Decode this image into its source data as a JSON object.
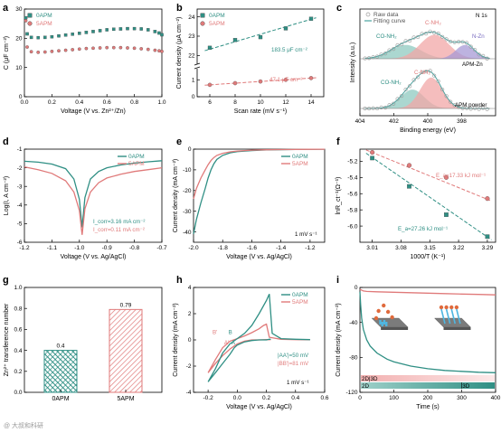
{
  "colors": {
    "apm0": "#2f8f84",
    "apm5": "#e07a7a",
    "grey": "#9a9a9a",
    "dark": "#3a3a3a"
  },
  "legend": {
    "apm0": "0APM",
    "apm5": "5APM"
  },
  "panels": {
    "a": {
      "letter": "a",
      "xlabel": "Voltage (V vs. Zn²⁺/Zn)",
      "ylabel": "C (μF cm⁻²)"
    },
    "b": {
      "letter": "b",
      "xlabel": "Scan rate (mV s⁻¹)",
      "ylabel": "Current density (μA cm⁻²)",
      "ann_0": "183.5 μF cm⁻²",
      "ann_5": "47.1 μF cm⁻²"
    },
    "c": {
      "letter": "c",
      "xlabel": "Binding energy (eV)",
      "ylabel": "Intensity (a.u.)",
      "legend_raw": "Raw data",
      "legend_fit": "Fitting curve",
      "tag": "N 1s",
      "top_labels": [
        "CO-NH₂",
        "C-NH₂",
        "N-Zn"
      ],
      "top_sample": "APM-Zn",
      "bottom_labels": [
        "CO-NH₂",
        "C-NH₂"
      ],
      "bottom_sample": "APM powder"
    },
    "d": {
      "letter": "d",
      "xlabel": "Voltage (V vs. Ag/AgCl)",
      "ylabel": "Log(I, A cm⁻²)",
      "icorr_0": "I_corr=3.16 mA cm⁻²",
      "icorr_5": "I_corr=0.11 mA cm⁻²"
    },
    "e": {
      "letter": "e",
      "xlabel": "Voltage (V vs. Ag/AgCl)",
      "ylabel": "Current density (mA cm⁻²)",
      "rate": "1 mV s⁻¹"
    },
    "f": {
      "letter": "f",
      "xlabel": "1000/T (K⁻¹)",
      "ylabel": "lnR_ct⁻¹(Ω⁻¹)",
      "ea_5": "E_a=17.33 kJ mol⁻¹",
      "ea_0": "E_a=27.26 kJ mol⁻¹"
    },
    "g": {
      "letter": "g",
      "xlabel": "",
      "ylabel": "Zn²⁺ transference number"
    },
    "h": {
      "letter": "h",
      "xlabel": "Voltage (V vs. Ag/AgCl)",
      "ylabel": "Current density (mA cm⁻²)",
      "rate": "1 mV s⁻¹",
      "ann_aa": "|AA'|=50 mV",
      "ann_bb": "|BB'|=81 mV",
      "pt_labels": [
        "B'",
        "B",
        "A'",
        "A"
      ]
    },
    "i": {
      "letter": "i",
      "xlabel": "Time (s)",
      "ylabel": "Current density (mA cm⁻²)",
      "tag_2d3d": "2D|3D",
      "tag_2d": "2D",
      "tag_3d": "3D"
    }
  },
  "watermark": "@ 大叔和科研",
  "chart_data": [
    {
      "panel": "a",
      "type": "scatter",
      "xlim": [
        0,
        1.0
      ],
      "ylim": [
        0,
        30
      ],
      "xticks": [
        0.0,
        0.2,
        0.4,
        0.6,
        0.8,
        1.0
      ],
      "yticks": [
        0,
        10,
        20,
        30
      ],
      "series": [
        {
          "name": "0APM",
          "x": [
            0.01,
            0.02,
            0.05,
            0.1,
            0.15,
            0.2,
            0.25,
            0.3,
            0.35,
            0.4,
            0.45,
            0.5,
            0.55,
            0.6,
            0.65,
            0.7,
            0.75,
            0.8,
            0.85,
            0.9,
            0.95,
            0.98,
            1.0
          ],
          "y": [
            27,
            21.5,
            20.3,
            20.2,
            20.3,
            20.5,
            20.8,
            21.1,
            21.4,
            21.7,
            22.0,
            22.3,
            22.6,
            22.9,
            23.1,
            23.2,
            23.3,
            23.3,
            23.2,
            22.9,
            22.3,
            21.8,
            21.2
          ]
        },
        {
          "name": "5APM",
          "x": [
            0.01,
            0.02,
            0.05,
            0.1,
            0.15,
            0.2,
            0.25,
            0.3,
            0.35,
            0.4,
            0.45,
            0.5,
            0.55,
            0.6,
            0.65,
            0.7,
            0.75,
            0.8,
            0.85,
            0.9,
            0.95,
            0.98,
            1.0
          ],
          "y": [
            26,
            17,
            15.4,
            15.2,
            15.3,
            15.5,
            15.7,
            15.9,
            16.1,
            16.3,
            16.5,
            16.6,
            16.7,
            16.8,
            16.8,
            16.8,
            16.7,
            16.6,
            16.4,
            16.2,
            15.9,
            15.7,
            15.5
          ]
        }
      ]
    },
    {
      "panel": "b",
      "type": "scatter",
      "xlim": [
        5,
        15
      ],
      "xticks": [
        6,
        8,
        10,
        12,
        14
      ],
      "yticks_top": [
        22,
        23,
        24
      ],
      "yticks_bottom": [
        0,
        1
      ],
      "series": [
        {
          "name": "0APM",
          "x": [
            6,
            8,
            10,
            12,
            14
          ],
          "y": [
            22.4,
            22.8,
            22.95,
            23.4,
            23.9
          ]
        },
        {
          "name": "5APM",
          "x": [
            6,
            8,
            10,
            12,
            14
          ],
          "y": [
            0.7,
            0.8,
            0.9,
            1.0,
            1.1
          ]
        }
      ]
    },
    {
      "panel": "c",
      "type": "line",
      "xlim": [
        404,
        396
      ],
      "xticks": [
        404,
        402,
        400,
        398
      ],
      "top": {
        "peaks": [
          {
            "label": "CO-NH₂",
            "center": 401.3,
            "height": 0.45,
            "width": 0.9
          },
          {
            "label": "C-NH₂",
            "center": 399.6,
            "height": 0.78,
            "width": 0.85
          },
          {
            "label": "N-Zn",
            "center": 397.8,
            "height": 0.45,
            "width": 0.55
          }
        ]
      },
      "bottom": {
        "peaks": [
          {
            "label": "CO-NH₂",
            "center": 400.9,
            "height": 0.55,
            "width": 0.7
          },
          {
            "label": "C-NH₂",
            "center": 399.8,
            "height": 0.9,
            "width": 0.65
          }
        ]
      }
    },
    {
      "panel": "d",
      "type": "line",
      "xlim": [
        -1.2,
        -0.7
      ],
      "ylim": [
        -6,
        -1
      ],
      "xticks": [
        -1.2,
        -1.1,
        -1.0,
        -0.9,
        -0.8,
        -0.7
      ],
      "yticks": [
        -6,
        -5,
        -4,
        -3,
        -2,
        -1
      ],
      "series": [
        {
          "name": "0APM",
          "x": [
            -1.2,
            -1.15,
            -1.1,
            -1.05,
            -1.02,
            -1.0,
            -0.99,
            -0.98,
            -0.96,
            -0.93,
            -0.9,
            -0.85,
            -0.8,
            -0.75,
            -0.7
          ],
          "y": [
            -1.65,
            -1.7,
            -1.8,
            -2.05,
            -2.6,
            -3.7,
            -5.2,
            -3.6,
            -2.6,
            -2.2,
            -2.0,
            -1.85,
            -1.75,
            -1.68,
            -1.62
          ]
        },
        {
          "name": "5APM",
          "x": [
            -1.2,
            -1.15,
            -1.1,
            -1.05,
            -1.02,
            -1.0,
            -0.99,
            -0.98,
            -0.96,
            -0.93,
            -0.9,
            -0.85,
            -0.8,
            -0.75,
            -0.7
          ],
          "y": [
            -1.95,
            -2.1,
            -2.3,
            -2.7,
            -3.3,
            -4.3,
            -5.6,
            -4.2,
            -3.3,
            -2.8,
            -2.55,
            -2.35,
            -2.2,
            -2.1,
            -2.0
          ]
        }
      ]
    },
    {
      "panel": "e",
      "type": "line",
      "xlim": [
        -2.0,
        -1.1
      ],
      "ylim": [
        -45,
        0
      ],
      "xticks": [
        -2.0,
        -1.8,
        -1.6,
        -1.4,
        -1.2
      ],
      "yticks": [
        -40,
        -30,
        -20,
        -10,
        0
      ],
      "series": [
        {
          "name": "0APM",
          "x": [
            -2.0,
            -1.98,
            -1.95,
            -1.92,
            -1.9,
            -1.88,
            -1.86,
            -1.84,
            -1.8,
            -1.75,
            -1.7,
            -1.6,
            -1.5,
            -1.4,
            -1.3,
            -1.2,
            -1.1
          ],
          "y": [
            -41,
            -34,
            -26,
            -19,
            -14,
            -10,
            -7,
            -5,
            -3,
            -1.8,
            -1.2,
            -0.7,
            -0.4,
            -0.25,
            -0.15,
            -0.1,
            -0.05
          ]
        },
        {
          "name": "5APM",
          "x": [
            -2.0,
            -1.98,
            -1.95,
            -1.92,
            -1.9,
            -1.88,
            -1.86,
            -1.84,
            -1.8,
            -1.75,
            -1.7,
            -1.6,
            -1.5,
            -1.4,
            -1.3,
            -1.2,
            -1.1
          ],
          "y": [
            -24,
            -19,
            -14,
            -10,
            -7.5,
            -5.5,
            -4,
            -3,
            -2,
            -1.3,
            -0.9,
            -0.5,
            -0.3,
            -0.2,
            -0.12,
            -0.08,
            -0.04
          ]
        }
      ]
    },
    {
      "panel": "f",
      "type": "scatter",
      "xlim": [
        2.98,
        3.31
      ],
      "ylim": [
        -6.2,
        -5.05
      ],
      "xticks": [
        3.01,
        3.08,
        3.15,
        3.22,
        3.29
      ],
      "yticks": [
        -6.0,
        -5.8,
        -5.6,
        -5.4,
        -5.2
      ],
      "series": [
        {
          "name": "5APM",
          "x": [
            3.01,
            3.1,
            3.19,
            3.29
          ],
          "y": [
            -5.09,
            -5.25,
            -5.4,
            -5.66
          ]
        },
        {
          "name": "0APM",
          "x": [
            3.01,
            3.1,
            3.19,
            3.29
          ],
          "y": [
            -5.16,
            -5.51,
            -5.86,
            -6.13
          ]
        }
      ]
    },
    {
      "panel": "g",
      "type": "bar",
      "categories": [
        "0APM",
        "5APM"
      ],
      "values": [
        0.4,
        0.79
      ],
      "ylim": [
        0,
        1.0
      ],
      "yticks": [
        0.0,
        0.2,
        0.4,
        0.6,
        0.8,
        1.0
      ]
    },
    {
      "panel": "h",
      "type": "line",
      "xlim": [
        -0.3,
        0.6
      ],
      "ylim": [
        -4,
        4
      ],
      "xticks": [
        -0.2,
        0.0,
        0.2,
        0.4,
        0.6
      ],
      "yticks": [
        -4,
        -2,
        0,
        2,
        4
      ],
      "series": [
        {
          "name": "0APM",
          "x": [
            0.23,
            0.22,
            0.2,
            0.15,
            0.1,
            0.05,
            0.0,
            -0.02,
            -0.05,
            -0.1,
            -0.15,
            -0.2,
            -0.15,
            -0.1,
            -0.05,
            0.0,
            0.05,
            0.1,
            0.15,
            0.2,
            0.22,
            0.24,
            0.3,
            0.4,
            0.5
          ],
          "y": [
            0.05,
            0.05,
            0.0,
            0.0,
            -0.05,
            -0.15,
            -0.4,
            -0.6,
            -1.1,
            -1.8,
            -2.5,
            -3.2,
            -2.2,
            -1.0,
            -0.3,
            0.1,
            0.5,
            1.1,
            2.0,
            3.0,
            3.5,
            0.5,
            0.1,
            0.05,
            0.02
          ]
        },
        {
          "name": "5APM",
          "x": [
            0.23,
            0.2,
            0.15,
            0.1,
            0.05,
            0.0,
            -0.05,
            -0.1,
            -0.15,
            -0.2,
            -0.15,
            -0.1,
            -0.05,
            0.0,
            0.05,
            0.1,
            0.15,
            0.18,
            0.2,
            0.22,
            0.3,
            0.4,
            0.5
          ],
          "y": [
            0.02,
            0.02,
            0.0,
            0.0,
            -0.1,
            -0.3,
            -0.7,
            -1.2,
            -1.8,
            -2.5,
            -1.5,
            -0.6,
            -0.1,
            0.1,
            0.3,
            0.55,
            0.85,
            1.1,
            1.2,
            0.2,
            0.05,
            0.02,
            0.01
          ]
        }
      ]
    },
    {
      "panel": "i",
      "type": "line",
      "xlim": [
        0,
        400
      ],
      "ylim": [
        -120,
        0
      ],
      "xticks": [
        0,
        100,
        200,
        300,
        400
      ],
      "yticks": [
        -120,
        -80,
        -40,
        0
      ],
      "series": [
        {
          "name": "0APM",
          "x": [
            0,
            2,
            5,
            10,
            20,
            30,
            50,
            80,
            100,
            150,
            200,
            250,
            300,
            350,
            400
          ],
          "y": [
            -5,
            -20,
            -35,
            -48,
            -60,
            -67,
            -75,
            -82,
            -85,
            -90,
            -93,
            -95,
            -96,
            -97,
            -97.5
          ]
        },
        {
          "name": "5APM",
          "x": [
            0,
            5,
            10,
            20,
            50,
            100,
            150,
            200,
            250,
            300,
            350,
            400
          ],
          "y": [
            -2,
            -3,
            -4,
            -4.5,
            -5,
            -5.5,
            -6,
            -6.5,
            -7,
            -7.5,
            -8,
            -8.5
          ]
        }
      ]
    }
  ]
}
